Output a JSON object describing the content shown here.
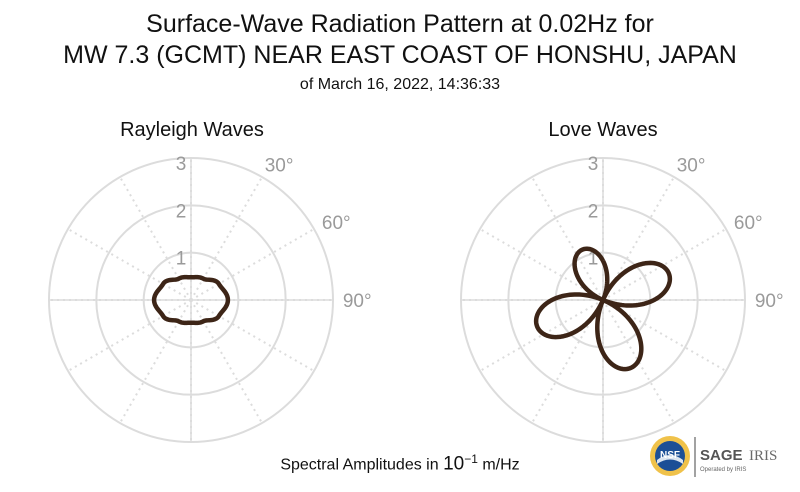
{
  "header": {
    "title_line1": "Surface-Wave Radiation Pattern at 0.02Hz for",
    "title_line2": "MW 7.3 (GCMT) NEAR EAST COAST OF HONSHU, JAPAN",
    "subtitle": "of March 16, 2022, 14:36:33"
  },
  "footer": {
    "units_prefix": "Spectral Amplitudes in ",
    "units_power": "10",
    "units_exp": "−1",
    "units_suffix": " m/Hz"
  },
  "logo": {
    "nsf": "NSF",
    "sage": "SAGE",
    "iris": "IRIS",
    "tagline": "Operated by IRIS"
  },
  "colors": {
    "pattern": "#3d2517",
    "grid": "#dcdcdc",
    "tick_text": "#9a9a9a"
  },
  "chart_data": [
    {
      "type": "polar",
      "title": "Rayleigh Waves",
      "radial_ticks": [
        "1",
        "2",
        "3"
      ],
      "radial_range": [
        0,
        3
      ],
      "angle_ticks": [
        "30°",
        "60°",
        "90°"
      ],
      "angle_direction": "clockwise from north",
      "series": [
        {
          "angles_deg": [
            0,
            30,
            60,
            90,
            120,
            150,
            180,
            210,
            240,
            270,
            300,
            330
          ],
          "amplitudes": [
            0.48,
            0.52,
            0.68,
            0.78,
            0.68,
            0.52,
            0.48,
            0.52,
            0.68,
            0.78,
            0.68,
            0.52
          ]
        }
      ]
    },
    {
      "type": "polar",
      "title": "Love Waves",
      "radial_ticks": [
        "1",
        "2",
        "3"
      ],
      "radial_range": [
        0,
        3
      ],
      "angle_ticks": [
        "30°",
        "60°",
        "90°"
      ],
      "angle_direction": "clockwise from north",
      "series": [
        {
          "lobe_directions_deg": [
            -22,
            68,
            158,
            248
          ],
          "peak_amplitudes": [
            1.15,
            1.5,
            1.55,
            1.5
          ]
        }
      ]
    }
  ]
}
